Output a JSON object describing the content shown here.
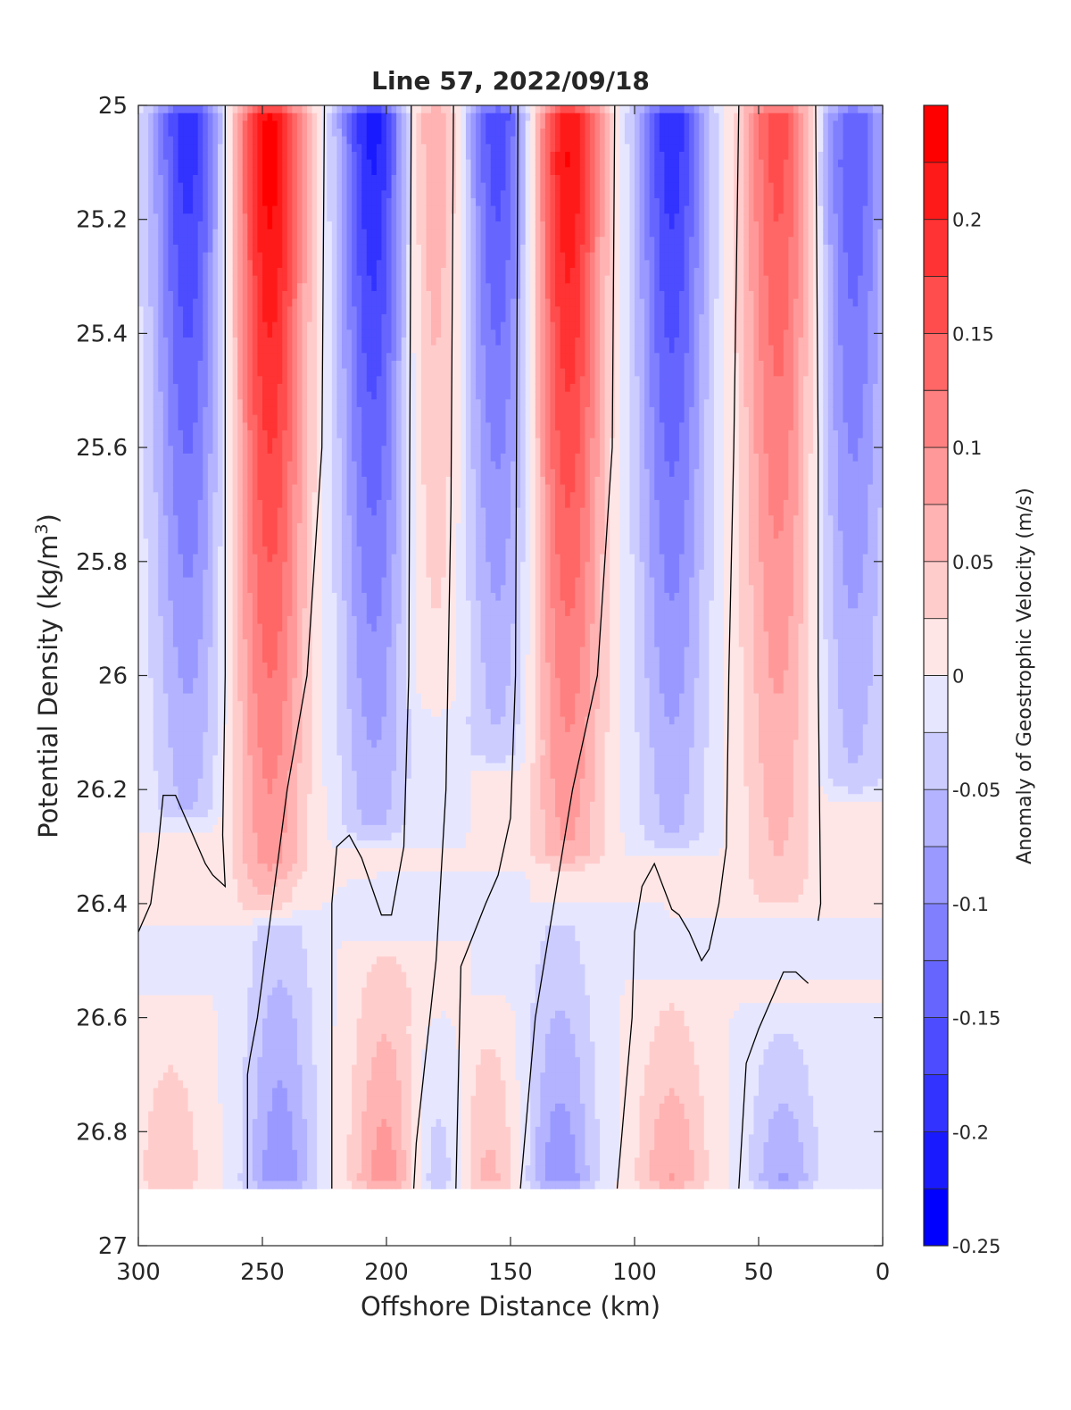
{
  "chart_data": {
    "type": "contourf",
    "title": "Line 57, 2022/09/18",
    "xlabel": "Offshore Distance (km)",
    "ylabel": "Potential Density (kg/m³)",
    "ylabel_parts": {
      "main": "Potential Density (kg/m",
      "sup": "3",
      "close": ")"
    },
    "x_range": [
      300,
      0
    ],
    "x_reversed": true,
    "y_range": [
      25,
      27
    ],
    "y_reversed": true,
    "x_ticks": [
      "300",
      "250",
      "200",
      "150",
      "100",
      "50",
      "0"
    ],
    "x_tick_values": [
      300,
      250,
      200,
      150,
      100,
      50,
      0
    ],
    "y_ticks": [
      "25",
      "25.2",
      "25.4",
      "25.6",
      "25.8",
      "26",
      "26.2",
      "26.4",
      "26.6",
      "26.8",
      "27"
    ],
    "y_tick_values": [
      25,
      25.2,
      25.4,
      25.6,
      25.8,
      26,
      26.2,
      26.4,
      26.6,
      26.8,
      27
    ],
    "colorbar": {
      "label": "Anomaly of Geostrophic Velocity (m/s)",
      "range": [
        -0.25,
        0.25
      ],
      "step": 0.025,
      "ticks": [
        "0.2",
        "0.15",
        "0.1",
        "0.05",
        "0",
        "-0.05",
        "-0.1",
        "-0.15",
        "-0.2",
        "-0.25"
      ],
      "tick_values": [
        0.2,
        0.15,
        0.1,
        0.05,
        0,
        -0.05,
        -0.1,
        -0.15,
        -0.2,
        -0.25
      ],
      "colors": [
        "#0000ff",
        "#1a1aff",
        "#3333ff",
        "#4d4dff",
        "#6666ff",
        "#8080ff",
        "#9999ff",
        "#b3b3ff",
        "#ccccff",
        "#e6e6ff",
        "#ffffff",
        "#ffffff",
        "#ffe6e6",
        "#ffcccc",
        "#ffb3b3",
        "#ff9999",
        "#ff8080",
        "#ff6666",
        "#ff4d4d",
        "#ff3333",
        "#ff1a1a",
        "#ff0000"
      ],
      "levels": [
        -0.25,
        -0.225,
        -0.2,
        -0.175,
        -0.15,
        -0.125,
        -0.1,
        -0.075,
        -0.05,
        -0.025,
        0,
        0.025,
        0.05,
        0.075,
        0.1,
        0.125,
        0.15,
        0.175,
        0.2,
        0.225,
        0.25
      ]
    },
    "cells": [
      {
        "x": 280,
        "top": 25.0,
        "bottom": 26.25,
        "peak": -0.2,
        "peak_at": 25.0
      },
      {
        "x": 247,
        "top": 25.0,
        "bottom": 26.42,
        "peak": 0.24,
        "peak_at": 25.1
      },
      {
        "x": 205,
        "top": 25.0,
        "bottom": 26.28,
        "peak": -0.22,
        "peak_at": 25.0
      },
      {
        "x": 181,
        "top": 25.0,
        "bottom": 26.05,
        "peak": 0.09,
        "peak_at": 25.0
      },
      {
        "x": 155,
        "top": 25.0,
        "bottom": 26.15,
        "peak": -0.18,
        "peak_at": 25.0
      },
      {
        "x": 127,
        "top": 25.0,
        "bottom": 26.33,
        "peak": 0.23,
        "peak_at": 25.1
      },
      {
        "x": 85,
        "top": 25.0,
        "bottom": 26.3,
        "peak": -0.2,
        "peak_at": 25.0
      },
      {
        "x": 42,
        "top": 25.0,
        "bottom": 26.4,
        "peak": 0.17,
        "peak_at": 25.0
      },
      {
        "x": 12,
        "top": 25.0,
        "bottom": 26.2,
        "peak": -0.15,
        "peak_at": 25.1
      },
      {
        "x": 287,
        "top": 26.58,
        "bottom": 26.9,
        "peak": 0.05,
        "peak_at": 26.9
      },
      {
        "x": 243,
        "top": 26.35,
        "bottom": 26.9,
        "peak": -0.1,
        "peak_at": 26.9
      },
      {
        "x": 200,
        "top": 26.48,
        "bottom": 26.9,
        "peak": 0.1,
        "peak_at": 26.9
      },
      {
        "x": 179,
        "top": 26.6,
        "bottom": 26.9,
        "peak": -0.06,
        "peak_at": 26.9
      },
      {
        "x": 160,
        "top": 26.58,
        "bottom": 26.9,
        "peak": 0.07,
        "peak_at": 26.9
      },
      {
        "x": 130,
        "top": 26.42,
        "bottom": 26.9,
        "peak": -0.1,
        "peak_at": 26.9
      },
      {
        "x": 85,
        "top": 26.55,
        "bottom": 26.9,
        "peak": 0.08,
        "peak_at": 26.9
      },
      {
        "x": 40,
        "top": 26.6,
        "bottom": 26.9,
        "peak": -0.08,
        "peak_at": 26.9
      }
    ],
    "zero_contours": [
      [
        [
          265,
          25.0
        ],
        [
          265,
          26.0
        ],
        [
          266,
          26.28
        ],
        [
          265,
          26.37
        ],
        [
          270,
          26.35
        ],
        [
          273,
          26.33
        ],
        [
          278,
          26.28
        ],
        [
          285,
          26.21
        ],
        [
          290,
          26.21
        ],
        [
          292,
          26.3
        ],
        [
          295,
          26.4
        ],
        [
          300,
          26.45
        ]
      ],
      [
        [
          225,
          25.0
        ],
        [
          226,
          25.6
        ],
        [
          232,
          26.0
        ],
        [
          240,
          26.2
        ],
        [
          252,
          26.6
        ],
        [
          255,
          26.67
        ],
        [
          256,
          26.7
        ],
        [
          256,
          26.9
        ]
      ],
      [
        [
          190,
          25.0
        ],
        [
          191,
          26.0
        ],
        [
          193,
          26.3
        ],
        [
          198,
          26.42
        ],
        [
          202,
          26.42
        ],
        [
          210,
          26.32
        ],
        [
          215,
          26.28
        ],
        [
          220,
          26.3
        ],
        [
          222,
          26.4
        ],
        [
          222,
          26.9
        ]
      ],
      [
        [
          173,
          25.0
        ],
        [
          174,
          25.7
        ],
        [
          176,
          26.2
        ],
        [
          180,
          26.5
        ],
        [
          188,
          26.82
        ],
        [
          189,
          26.9
        ]
      ],
      [
        [
          147,
          25.0
        ],
        [
          148,
          26.0
        ],
        [
          150,
          26.25
        ],
        [
          155,
          26.35
        ],
        [
          160,
          26.4
        ],
        [
          170,
          26.51
        ],
        [
          172,
          26.9
        ]
      ],
      [
        [
          108,
          25.0
        ],
        [
          109,
          25.6
        ],
        [
          115,
          26.0
        ],
        [
          125,
          26.2
        ],
        [
          140,
          26.6
        ],
        [
          146,
          26.9
        ]
      ],
      [
        [
          58,
          25.0
        ],
        [
          60,
          25.6
        ],
        [
          62,
          26.0
        ],
        [
          63,
          26.3
        ],
        [
          66,
          26.4
        ],
        [
          70,
          26.48
        ],
        [
          73,
          26.5
        ],
        [
          78,
          26.45
        ],
        [
          82,
          26.42
        ],
        [
          85,
          26.41
        ],
        [
          92,
          26.33
        ],
        [
          97,
          26.37
        ],
        [
          100,
          26.45
        ],
        [
          101,
          26.6
        ],
        [
          107,
          26.9
        ]
      ],
      [
        [
          27,
          25.0
        ],
        [
          26,
          25.6
        ],
        [
          26,
          26.0
        ],
        [
          25,
          26.4
        ],
        [
          26,
          26.43
        ]
      ],
      [
        [
          30,
          26.54
        ],
        [
          35,
          26.52
        ],
        [
          40,
          26.52
        ],
        [
          46,
          26.58
        ],
        [
          50,
          26.62
        ],
        [
          55,
          26.68
        ],
        [
          58,
          26.9
        ]
      ]
    ]
  }
}
